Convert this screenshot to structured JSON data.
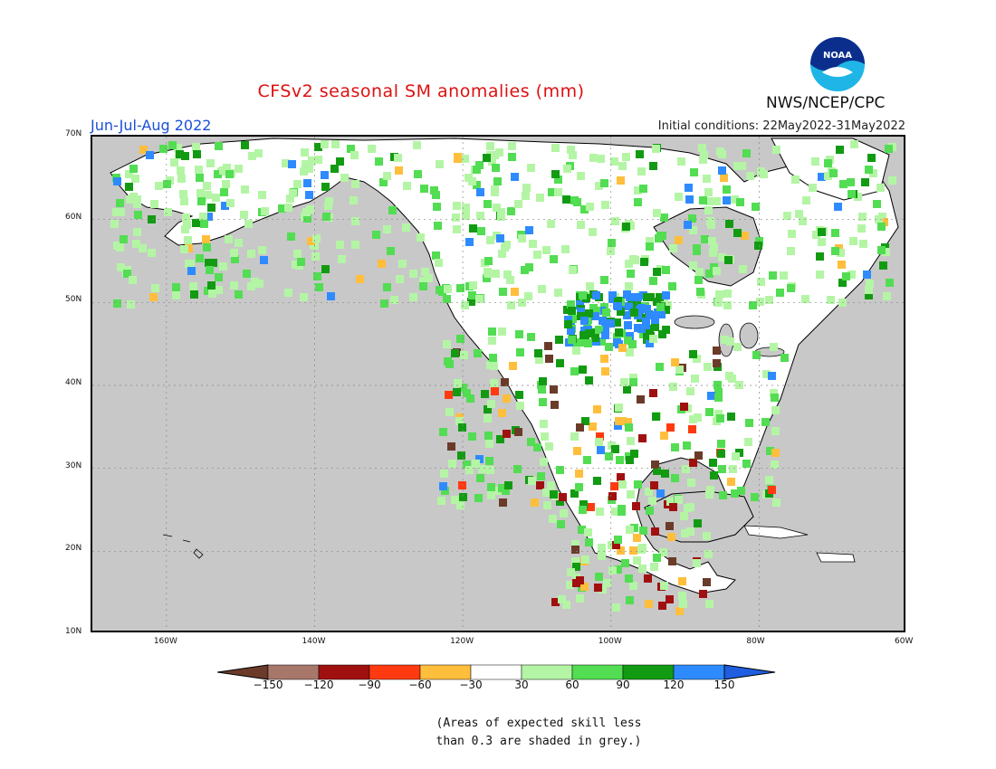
{
  "title": "CFSv2 seasonal SM anomalies (mm)",
  "season": "Jun-Jul-Aug 2022",
  "initial_conditions": "Initial conditions: 22May2022-31May2022",
  "agency": "NWS/NCEP/CPC",
  "logo_text": "NOAA",
  "note_line1": "(Areas of expected skill less",
  "note_line2": "than 0.3 are shaded in grey.)",
  "axes": {
    "lat_labels": [
      "70N",
      "60N",
      "50N",
      "40N",
      "30N",
      "20N",
      "10N"
    ],
    "lon_labels": [
      "160W",
      "140W",
      "120W",
      "100W",
      "80W",
      "60W"
    ],
    "lon_range": [
      -170,
      -60
    ],
    "lat_range": [
      10,
      70
    ]
  },
  "colorbar": {
    "labels": [
      "-150",
      "-120",
      "-90",
      "-60",
      "-30",
      "30",
      "60",
      "90",
      "120",
      "150"
    ],
    "colors": [
      "#6b3b2a",
      "#a8776c",
      "#a01010",
      "#ff3a10",
      "#ffbe3c",
      "#ffffff",
      "#b4f5a5",
      "#52dd52",
      "#129b12",
      "#2e8bff",
      "#1f5ee0"
    ]
  },
  "colors": {
    "land_grey": "#c8c8c8",
    "title_red": "#dd1111",
    "season_blue": "#1a4fd8"
  }
}
